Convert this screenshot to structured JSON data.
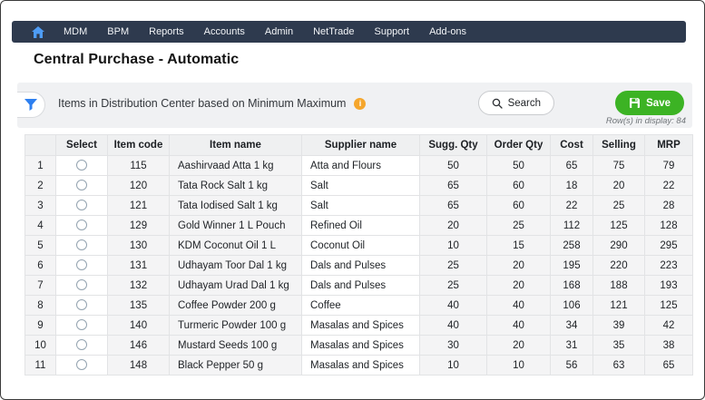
{
  "nav": {
    "items": [
      {
        "id": "mdm",
        "label": "MDM"
      },
      {
        "id": "bpm",
        "label": "BPM"
      },
      {
        "id": "reports",
        "label": "Reports"
      },
      {
        "id": "accounts",
        "label": "Accounts"
      },
      {
        "id": "admin",
        "label": "Admin"
      },
      {
        "id": "nettrade",
        "label": "NetTrade"
      },
      {
        "id": "support",
        "label": "Support"
      },
      {
        "id": "addons",
        "label": "Add-ons"
      }
    ]
  },
  "page": {
    "title": "Central Purchase - Automatic"
  },
  "filter_bar": {
    "heading": "Items in Distribution Center based on Minimum Maximum",
    "info_glyph": "i",
    "search_label": "Search",
    "save_label": "Save",
    "rows_in_display": "Row(s) in display: 84"
  },
  "icons": {
    "home": "house",
    "filter": "funnel",
    "info": "info-circle",
    "search": "magnifier",
    "save": "floppy-disk"
  },
  "colors": {
    "nav_bg": "#2e3a4e",
    "home_icon": "#4e9cf5",
    "filter_icon": "#2d7ff0",
    "info_badge": "#f5a62c",
    "save_green": "#3cb324",
    "panel_bg": "#f0f1f3"
  },
  "table": {
    "columns": [
      "",
      "Select",
      "Item code",
      "Item name",
      "Supplier name",
      "Sugg. Qty",
      "Order Qty",
      "Cost",
      "Selling",
      "MRP"
    ],
    "rows": [
      {
        "sno": "1",
        "item_code": "115",
        "item_name": "Aashirvaad Atta 1 kg",
        "supplier": "Atta and Flours",
        "sugg_qty": "50",
        "order_qty": "50",
        "cost": "65",
        "selling": "75",
        "mrp": "79"
      },
      {
        "sno": "2",
        "item_code": "120",
        "item_name": "Tata Rock Salt 1 kg",
        "supplier": "Salt",
        "sugg_qty": "65",
        "order_qty": "60",
        "cost": "18",
        "selling": "20",
        "mrp": "22"
      },
      {
        "sno": "3",
        "item_code": "121",
        "item_name": "Tata Iodised Salt 1 kg",
        "supplier": "Salt",
        "sugg_qty": "65",
        "order_qty": "60",
        "cost": "22",
        "selling": "25",
        "mrp": "28"
      },
      {
        "sno": "4",
        "item_code": "129",
        "item_name": "Gold Winner 1 L Pouch",
        "supplier": "Refined Oil",
        "sugg_qty": "20",
        "order_qty": "25",
        "cost": "112",
        "selling": "125",
        "mrp": "128"
      },
      {
        "sno": "5",
        "item_code": "130",
        "item_name": "KDM Coconut Oil 1 L",
        "supplier": "Coconut Oil",
        "sugg_qty": "10",
        "order_qty": "15",
        "cost": "258",
        "selling": "290",
        "mrp": "295"
      },
      {
        "sno": "6",
        "item_code": "131",
        "item_name": "Udhayam Toor Dal 1 kg",
        "supplier": "Dals and Pulses",
        "sugg_qty": "25",
        "order_qty": "20",
        "cost": "195",
        "selling": "220",
        "mrp": "223"
      },
      {
        "sno": "7",
        "item_code": "132",
        "item_name": "Udhayam Urad Dal 1 kg",
        "supplier": "Dals and Pulses",
        "sugg_qty": "25",
        "order_qty": "20",
        "cost": "168",
        "selling": "188",
        "mrp": "193"
      },
      {
        "sno": "8",
        "item_code": "135",
        "item_name": "Coffee Powder 200 g",
        "supplier": "Coffee",
        "sugg_qty": "40",
        "order_qty": "40",
        "cost": "106",
        "selling": "121",
        "mrp": "125"
      },
      {
        "sno": "9",
        "item_code": "140",
        "item_name": "Turmeric Powder 100 g",
        "supplier": "Masalas and Spices",
        "sugg_qty": "40",
        "order_qty": "40",
        "cost": "34",
        "selling": "39",
        "mrp": "42"
      },
      {
        "sno": "10",
        "item_code": "146",
        "item_name": "Mustard Seeds 100 g",
        "supplier": "Masalas and Spices",
        "sugg_qty": "30",
        "order_qty": "20",
        "cost": "31",
        "selling": "35",
        "mrp": "38"
      },
      {
        "sno": "11",
        "item_code": "148",
        "item_name": "Black Pepper 50 g",
        "supplier": "Masalas and Spices",
        "sugg_qty": "10",
        "order_qty": "10",
        "cost": "56",
        "selling": "63",
        "mrp": "65"
      }
    ]
  }
}
